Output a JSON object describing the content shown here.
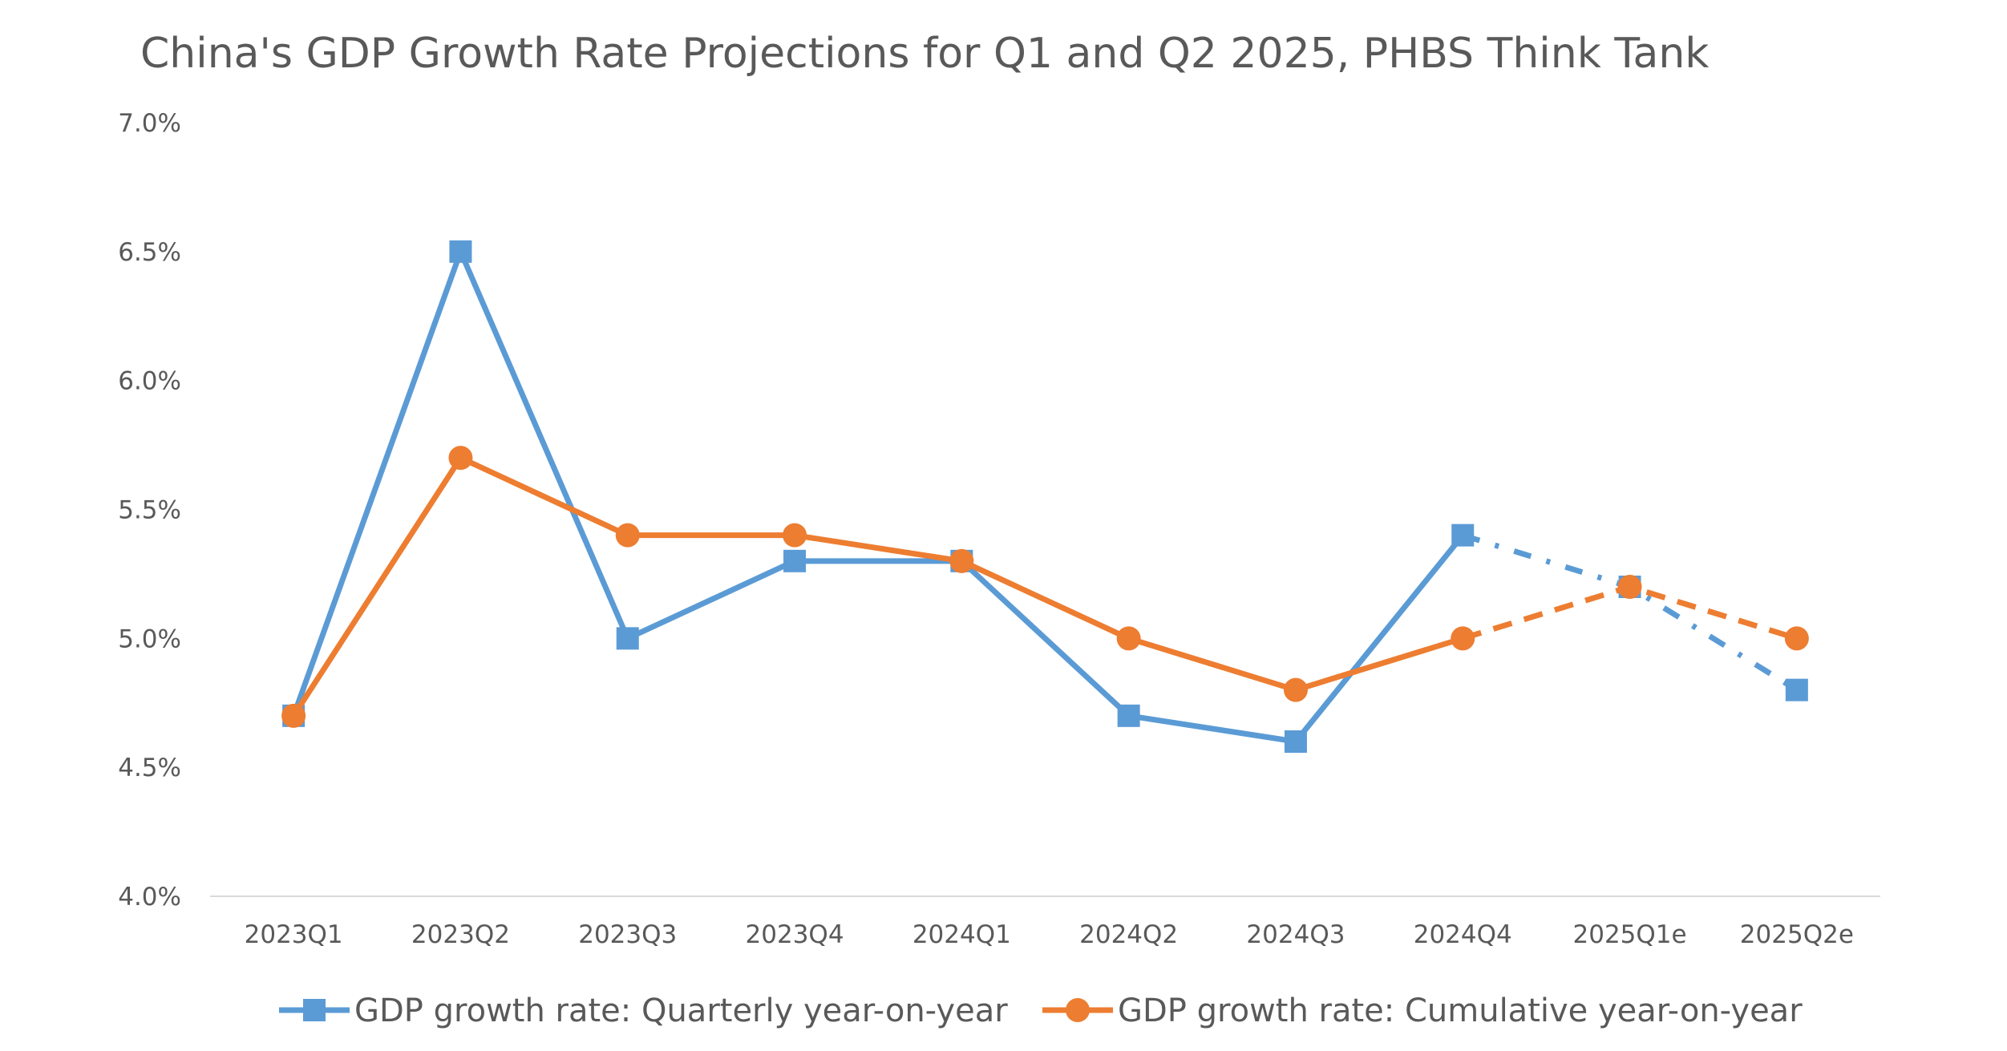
{
  "chart_data": {
    "type": "line",
    "title": "China's GDP Growth Rate Projections for Q1 and Q2 2025, PHBS Think Tank",
    "xlabel": "",
    "ylabel": "",
    "categories": [
      "2023Q1",
      "2023Q2",
      "2023Q3",
      "2023Q4",
      "2024Q1",
      "2024Q2",
      "2024Q3",
      "2024Q4",
      "2025Q1e",
      "2025Q2e"
    ],
    "ylim": [
      4.0,
      7.0
    ],
    "yticks": [
      4.0,
      4.5,
      5.0,
      5.5,
      6.0,
      6.5,
      7.0
    ],
    "ytick_labels": [
      "4.0%",
      "4.5%",
      "5.0%",
      "5.5%",
      "6.0%",
      "6.5%",
      "7.0%"
    ],
    "grid": false,
    "legend_position": "bottom",
    "projection_start_category": "2024Q4",
    "series": [
      {
        "name": "GDP growth rate: Quarterly year-on-year",
        "color": "#5B9BD5",
        "marker": "square",
        "values": [
          4.7,
          6.5,
          5.0,
          5.3,
          5.3,
          4.7,
          4.6,
          5.4,
          5.2,
          4.8
        ],
        "projection_line_style": "dash-dot"
      },
      {
        "name": "GDP growth rate: Cumulative year-on-year",
        "color": "#ED7D31",
        "marker": "circle",
        "values": [
          4.7,
          5.7,
          5.4,
          5.4,
          5.3,
          5.0,
          4.8,
          5.0,
          5.2,
          5.0
        ],
        "projection_line_style": "dashed"
      }
    ]
  }
}
